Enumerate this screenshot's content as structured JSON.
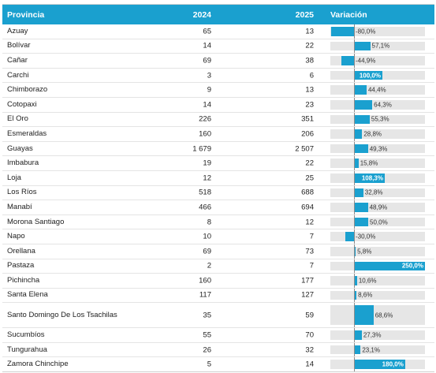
{
  "headers": {
    "province": "Provincia",
    "y2024": "2024",
    "y2025": "2025",
    "variation": "Variación"
  },
  "colors": {
    "accent": "#1aa0cf",
    "track": "#e6e6e6"
  },
  "rows": [
    {
      "province": "Azuay",
      "y2024": "65",
      "y2025": "13",
      "variation": "-80,0%",
      "pct": -80.0
    },
    {
      "province": "Bolívar",
      "y2024": "14",
      "y2025": "22",
      "variation": "57,1%",
      "pct": 57.1
    },
    {
      "province": "Cañar",
      "y2024": "69",
      "y2025": "38",
      "variation": "-44,9%",
      "pct": -44.9
    },
    {
      "province": "Carchi",
      "y2024": "3",
      "y2025": "6",
      "variation": "100,0%",
      "pct": 100.0
    },
    {
      "province": "Chimborazo",
      "y2024": "9",
      "y2025": "13",
      "variation": "44,4%",
      "pct": 44.4
    },
    {
      "province": "Cotopaxi",
      "y2024": "14",
      "y2025": "23",
      "variation": "64,3%",
      "pct": 64.3
    },
    {
      "province": "El Oro",
      "y2024": "226",
      "y2025": "351",
      "variation": "55,3%",
      "pct": 55.3
    },
    {
      "province": "Esmeraldas",
      "y2024": "160",
      "y2025": "206",
      "variation": "28,8%",
      "pct": 28.8
    },
    {
      "province": "Guayas",
      "y2024": "1 679",
      "y2025": "2 507",
      "variation": "49,3%",
      "pct": 49.3
    },
    {
      "province": "Imbabura",
      "y2024": "19",
      "y2025": "22",
      "variation": "15,8%",
      "pct": 15.8
    },
    {
      "province": "Loja",
      "y2024": "12",
      "y2025": "25",
      "variation": "108,3%",
      "pct": 108.3
    },
    {
      "province": "Los Ríos",
      "y2024": "518",
      "y2025": "688",
      "variation": "32,8%",
      "pct": 32.8
    },
    {
      "province": "Manabí",
      "y2024": "466",
      "y2025": "694",
      "variation": "48,9%",
      "pct": 48.9
    },
    {
      "province": "Morona Santiago",
      "y2024": "8",
      "y2025": "12",
      "variation": "50,0%",
      "pct": 50.0
    },
    {
      "province": "Napo",
      "y2024": "10",
      "y2025": "7",
      "variation": "-30,0%",
      "pct": -30.0
    },
    {
      "province": "Orellana",
      "y2024": "69",
      "y2025": "73",
      "variation": "5,8%",
      "pct": 5.8
    },
    {
      "province": "Pastaza",
      "y2024": "2",
      "y2025": "7",
      "variation": "250,0%",
      "pct": 250.0
    },
    {
      "province": "Pichincha",
      "y2024": "160",
      "y2025": "177",
      "variation": "10,6%",
      "pct": 10.6
    },
    {
      "province": "Santa Elena",
      "y2024": "117",
      "y2025": "127",
      "variation": "8,6%",
      "pct": 8.6
    },
    {
      "province": "Santo Domingo De Los Tsachilas",
      "y2024": "35",
      "y2025": "59",
      "variation": "68,6%",
      "pct": 68.6
    },
    {
      "province": "Sucumbíos",
      "y2024": "55",
      "y2025": "70",
      "variation": "27,3%",
      "pct": 27.3
    },
    {
      "province": "Tungurahua",
      "y2024": "26",
      "y2025": "32",
      "variation": "23,1%",
      "pct": 23.1
    },
    {
      "province": "Zamora Chinchipe",
      "y2024": "5",
      "y2025": "14",
      "variation": "180,0%",
      "pct": 180.0
    }
  ]
}
